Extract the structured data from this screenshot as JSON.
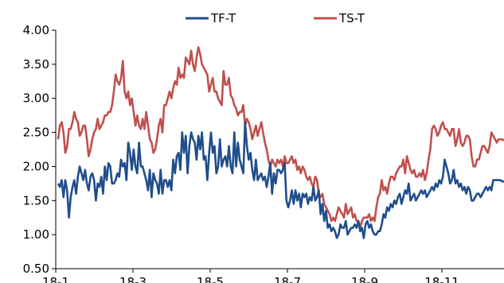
{
  "chart_data": {
    "type": "line",
    "title": "",
    "xlabel": "",
    "ylabel": "",
    "ylim": [
      0.5,
      4.0
    ],
    "y_ticks": [
      "4.00",
      "3.50",
      "3.00",
      "2.50",
      "2.00",
      "1.50",
      "1.00",
      "0.50"
    ],
    "x_ticks": [
      "18-1",
      "18-3",
      "18-5",
      "18-7",
      "18-9",
      "18-11"
    ],
    "grid": false,
    "legend": "top-center",
    "series": [
      {
        "name": "TF-T",
        "color": "#1f4e8c",
        "values": [
          1.75,
          1.7,
          1.8,
          1.55,
          1.8,
          1.65,
          1.25,
          1.55,
          1.7,
          1.8,
          1.6,
          1.85,
          2.0,
          1.9,
          1.8,
          1.95,
          1.75,
          1.65,
          1.85,
          1.9,
          1.8,
          1.5,
          1.75,
          1.7,
          1.85,
          1.6,
          2.0,
          1.8,
          2.05,
          2.0,
          1.75,
          1.75,
          1.8,
          1.9,
          1.85,
          2.1,
          2.0,
          2.05,
          1.8,
          2.35,
          2.2,
          1.95,
          2.25,
          2.0,
          1.9,
          2.35,
          2.0,
          2.0,
          1.9,
          1.8,
          1.65,
          1.95,
          1.55,
          1.9,
          1.8,
          1.75,
          1.6,
          1.95,
          1.6,
          1.8,
          1.8,
          1.7,
          1.8,
          1.65,
          2.1,
          1.9,
          2.15,
          2.2,
          1.95,
          2.5,
          2.2,
          2.45,
          1.9,
          2.3,
          2.5,
          2.4,
          2.35,
          2.1,
          2.45,
          2.25,
          2.5,
          2.1,
          2.15,
          1.8,
          2.2,
          2.5,
          2.2,
          2.3,
          1.9,
          2.0,
          2.4,
          2.0,
          2.1,
          2.15,
          2.0,
          2.3,
          2.0,
          1.9,
          2.5,
          2.0,
          2.35,
          2.1,
          2.0,
          1.9,
          2.65,
          2.3,
          2.1,
          2.2,
          1.95,
          1.8,
          2.1,
          1.8,
          1.85,
          1.9,
          1.8,
          1.85,
          1.7,
          1.85,
          2.05,
          1.6,
          1.9,
          1.75,
          1.95,
          1.95,
          1.9,
          1.95,
          2.05,
          1.5,
          1.4,
          1.5,
          1.65,
          1.45,
          1.65,
          1.5,
          1.6,
          1.4,
          1.6,
          1.55,
          1.6,
          1.45,
          1.55,
          1.5,
          1.7,
          1.5,
          1.55,
          1.65,
          1.3,
          1.45,
          1.2,
          1.35,
          1.1,
          1.15,
          1.05,
          1.1,
          1.05,
          0.95,
          1.0,
          1.15,
          1.1,
          1.1,
          1.2,
          1.0,
          1.05,
          1.1,
          1.1,
          1.15,
          1.1,
          1.2,
          1.05,
          1.1,
          0.95,
          1.15,
          1.2,
          1.1,
          1.15,
          1.05,
          1.0,
          1.0,
          1.05,
          1.05,
          1.15,
          1.3,
          1.25,
          1.4,
          1.35,
          1.45,
          1.4,
          1.5,
          1.45,
          1.55,
          1.6,
          1.45,
          1.55,
          1.65,
          1.6,
          1.75,
          1.5,
          1.55,
          1.6,
          1.5,
          1.55,
          1.6,
          1.65,
          1.6,
          1.65,
          1.55,
          1.6,
          1.65,
          1.7,
          1.65,
          1.75,
          1.7,
          1.8,
          1.75,
          1.85,
          2.1,
          2.0,
          1.9,
          1.75,
          1.8,
          1.95,
          1.75,
          1.8,
          1.7,
          1.75,
          1.65,
          1.7,
          1.6,
          1.7,
          1.65,
          1.5,
          1.5,
          1.55,
          1.6,
          1.6,
          1.55,
          1.6,
          1.65,
          1.7,
          1.65,
          1.7,
          1.65,
          1.8,
          1.8,
          1.8,
          1.8,
          1.8,
          1.78,
          1.78
        ]
      },
      {
        "name": "TS-T",
        "color": "#c0504d",
        "values": [
          2.4,
          2.6,
          2.65,
          2.5,
          2.2,
          2.3,
          2.55,
          2.55,
          2.65,
          2.8,
          2.7,
          2.65,
          2.45,
          2.5,
          2.6,
          2.6,
          2.4,
          2.15,
          2.25,
          2.4,
          2.5,
          2.55,
          2.7,
          2.55,
          2.6,
          2.65,
          2.75,
          2.75,
          2.8,
          2.8,
          2.9,
          3.1,
          3.35,
          3.25,
          3.2,
          3.3,
          3.55,
          3.1,
          3.0,
          3.1,
          2.9,
          3.0,
          2.8,
          2.6,
          2.75,
          2.6,
          2.55,
          2.7,
          2.55,
          2.8,
          2.6,
          2.4,
          2.35,
          2.2,
          2.25,
          2.4,
          2.6,
          2.7,
          2.5,
          2.9,
          2.9,
          3.0,
          3.1,
          3.0,
          3.15,
          3.25,
          3.2,
          3.45,
          3.3,
          3.35,
          3.3,
          3.6,
          3.55,
          3.5,
          3.7,
          3.5,
          3.4,
          3.6,
          3.75,
          3.65,
          3.5,
          3.45,
          3.4,
          3.35,
          3.1,
          3.2,
          3.3,
          3.1,
          3.1,
          3.0,
          2.95,
          2.9,
          3.4,
          3.2,
          3.2,
          3.3,
          3.05,
          3.0,
          2.9,
          2.85,
          2.75,
          2.8,
          2.8,
          2.9,
          2.6,
          2.7,
          2.65,
          2.55,
          2.4,
          2.5,
          2.6,
          2.45,
          2.55,
          2.65,
          2.5,
          2.35,
          2.25,
          2.1,
          2.0,
          2.1,
          2.05,
          2.0,
          2.1,
          2.05,
          2.1,
          2.0,
          2.15,
          2.05,
          2.05,
          2.1,
          2.15,
          2.05,
          2.1,
          1.95,
          2.0,
          1.9,
          2.0,
          1.95,
          1.85,
          1.8,
          1.85,
          1.75,
          1.7,
          1.85,
          1.8,
          1.6,
          1.55,
          1.6,
          1.45,
          1.4,
          1.35,
          1.3,
          1.2,
          1.25,
          1.2,
          1.3,
          1.4,
          1.35,
          1.3,
          1.25,
          1.45,
          1.3,
          1.35,
          1.4,
          1.25,
          1.3,
          1.2,
          1.2,
          1.1,
          1.2,
          1.25,
          1.25,
          1.25,
          1.3,
          1.2,
          1.25,
          1.2,
          1.4,
          1.55,
          1.6,
          1.8,
          1.65,
          1.7,
          1.6,
          1.75,
          1.85,
          1.85,
          1.8,
          1.9,
          1.95,
          2.0,
          2.0,
          2.1,
          1.9,
          2.15,
          2.05,
          1.95,
          1.9,
          1.95,
          1.85,
          1.85,
          1.9,
          1.85,
          1.95,
          1.8,
          1.9,
          2.1,
          2.25,
          2.55,
          2.6,
          2.55,
          2.45,
          2.5,
          2.6,
          2.65,
          2.55,
          2.55,
          2.5,
          2.45,
          2.55,
          2.55,
          2.3,
          2.4,
          2.55,
          2.35,
          2.3,
          2.35,
          2.45,
          2.45,
          2.4,
          2.15,
          2.0,
          2.0,
          2.1,
          2.1,
          2.2,
          2.3,
          2.3,
          2.25,
          2.2,
          2.3,
          2.5,
          2.45,
          2.4,
          2.35,
          2.4,
          2.4,
          2.4,
          2.38
        ]
      }
    ]
  }
}
